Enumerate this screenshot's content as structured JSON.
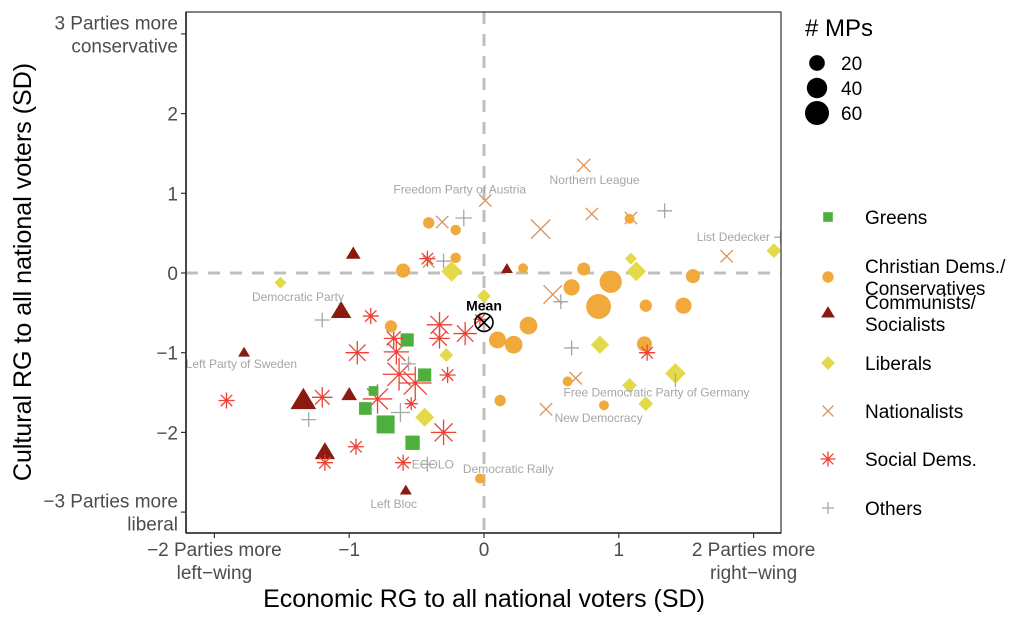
{
  "chart_data": {
    "type": "scatter",
    "title": "",
    "xlabel": "Economic RG to all national voters (SD)",
    "ylabel": "Cultural RG to all national voters (SD)",
    "xlim": [
      -2.2,
      2.2
    ],
    "ylim": [
      -3.3,
      3.3
    ],
    "grid": false,
    "reference_lines": {
      "x": 0,
      "y": 0,
      "style": "dashed",
      "color": "#bfbfbf"
    },
    "x_ticks": [
      {
        "value": -2,
        "label": [
          "−2 Parties more",
          "left−wing"
        ]
      },
      {
        "value": -1,
        "label": [
          "−1"
        ]
      },
      {
        "value": 0,
        "label": [
          "0"
        ]
      },
      {
        "value": 1,
        "label": [
          "1"
        ]
      },
      {
        "value": 2,
        "label": [
          "2 Parties more",
          "right−wing"
        ]
      }
    ],
    "y_ticks": [
      {
        "value": 3,
        "label": [
          "3 Parties more",
          "conservative"
        ]
      },
      {
        "value": 2,
        "label": [
          "2"
        ]
      },
      {
        "value": 1,
        "label": [
          "1"
        ]
      },
      {
        "value": 0,
        "label": [
          "0"
        ]
      },
      {
        "value": -1,
        "label": [
          "−1"
        ]
      },
      {
        "value": -2,
        "label": [
          "−2"
        ]
      },
      {
        "value": -3,
        "label": [
          "−3 Parties more",
          "liberal"
        ]
      }
    ],
    "size_legend": {
      "title": "# MPs",
      "entries": [
        20,
        40,
        60
      ],
      "placement": "top-right"
    },
    "families": [
      {
        "key": "greens",
        "label": [
          "Greens"
        ],
        "shape": "square",
        "color": "#4daf3c"
      },
      {
        "key": "christian",
        "label": [
          "Christian Dems./",
          "Conservatives"
        ],
        "shape": "circle",
        "color": "#f2a93b"
      },
      {
        "key": "communists",
        "label": [
          "Communists/",
          "Socialists"
        ],
        "shape": "triangle",
        "color": "#8b1a10"
      },
      {
        "key": "liberals",
        "label": [
          "Liberals"
        ],
        "shape": "diamond",
        "color": "#e3d94a"
      },
      {
        "key": "nationalists",
        "label": [
          "Nationalists"
        ],
        "shape": "x",
        "color": "#d9925a"
      },
      {
        "key": "socialdems",
        "label": [
          "Social Dems."
        ],
        "shape": "asterisk",
        "color": "#ee4035"
      },
      {
        "key": "others",
        "label": [
          "Others"
        ],
        "shape": "plus",
        "color": "#a6a6a6"
      }
    ],
    "legend_placement": "right",
    "mean": {
      "label": "Mean",
      "x": 0.0,
      "y": -0.62
    },
    "points": [
      {
        "family": "greens",
        "x": -0.73,
        "y": -1.9,
        "mps": 45
      },
      {
        "family": "greens",
        "x": -0.53,
        "y": -2.13,
        "mps": 25
      },
      {
        "family": "greens",
        "x": -0.57,
        "y": -0.84,
        "mps": 20
      },
      {
        "family": "greens",
        "x": -0.44,
        "y": -1.28,
        "mps": 20
      },
      {
        "family": "greens",
        "x": -0.88,
        "y": -1.7,
        "mps": 18
      },
      {
        "family": "greens",
        "x": -0.82,
        "y": -1.48,
        "mps": 8
      },
      {
        "family": "christian",
        "x": 0.85,
        "y": -0.42,
        "mps": 65
      },
      {
        "family": "christian",
        "x": 0.94,
        "y": -0.11,
        "mps": 50
      },
      {
        "family": "christian",
        "x": 0.33,
        "y": -0.66,
        "mps": 28
      },
      {
        "family": "christian",
        "x": 0.22,
        "y": -0.9,
        "mps": 28
      },
      {
        "family": "christian",
        "x": 0.1,
        "y": -0.84,
        "mps": 25
      },
      {
        "family": "christian",
        "x": 0.65,
        "y": -0.18,
        "mps": 22
      },
      {
        "family": "christian",
        "x": 1.48,
        "y": -0.41,
        "mps": 22
      },
      {
        "family": "christian",
        "x": 1.19,
        "y": -0.89,
        "mps": 18
      },
      {
        "family": "christian",
        "x": 1.55,
        "y": -0.04,
        "mps": 15
      },
      {
        "family": "christian",
        "x": -0.6,
        "y": 0.03,
        "mps": 15
      },
      {
        "family": "christian",
        "x": 0.74,
        "y": 0.05,
        "mps": 12
      },
      {
        "family": "christian",
        "x": 1.2,
        "y": -0.41,
        "mps": 10
      },
      {
        "family": "christian",
        "x": -0.69,
        "y": -0.67,
        "mps": 10
      },
      {
        "family": "christian",
        "x": 0.12,
        "y": -1.6,
        "mps": 8
      },
      {
        "family": "christian",
        "x": -0.41,
        "y": 0.63,
        "mps": 8
      },
      {
        "family": "christian",
        "x": -0.21,
        "y": 0.54,
        "mps": 6
      },
      {
        "family": "christian",
        "x": -0.21,
        "y": 0.19,
        "mps": 6
      },
      {
        "family": "christian",
        "x": 0.29,
        "y": 0.06,
        "mps": 5
      },
      {
        "family": "christian",
        "x": 0.62,
        "y": -1.36,
        "mps": 5
      },
      {
        "family": "christian",
        "x": 0.89,
        "y": -1.66,
        "mps": 5
      },
      {
        "family": "christian",
        "x": 1.08,
        "y": 0.68,
        "mps": 5
      },
      {
        "family": "christian",
        "x": -0.03,
        "y": -2.58,
        "mps": 5
      },
      {
        "family": "communists",
        "x": -1.34,
        "y": -1.6,
        "mps": 45
      },
      {
        "family": "communists",
        "x": -1.06,
        "y": -0.48,
        "mps": 25
      },
      {
        "family": "communists",
        "x": -1.18,
        "y": -2.25,
        "mps": 25
      },
      {
        "family": "communists",
        "x": -1.0,
        "y": -1.53,
        "mps": 12
      },
      {
        "family": "communists",
        "x": -0.97,
        "y": 0.24,
        "mps": 10
      },
      {
        "family": "communists",
        "x": -1.78,
        "y": -1.0,
        "mps": 5
      },
      {
        "family": "communists",
        "x": -0.58,
        "y": -2.73,
        "mps": 5
      },
      {
        "family": "communists",
        "x": 0.17,
        "y": 0.05,
        "mps": 5
      },
      {
        "family": "liberals",
        "x": 1.42,
        "y": -1.26,
        "mps": 25
      },
      {
        "family": "liberals",
        "x": -0.24,
        "y": 0.02,
        "mps": 25
      },
      {
        "family": "liberals",
        "x": 1.13,
        "y": 0.02,
        "mps": 22
      },
      {
        "family": "liberals",
        "x": -0.44,
        "y": -1.81,
        "mps": 20
      },
      {
        "family": "liberals",
        "x": 0.86,
        "y": -0.9,
        "mps": 18
      },
      {
        "family": "liberals",
        "x": 2.15,
        "y": 0.28,
        "mps": 10
      },
      {
        "family": "liberals",
        "x": 1.08,
        "y": -1.41,
        "mps": 10
      },
      {
        "family": "liberals",
        "x": 1.2,
        "y": -1.64,
        "mps": 10
      },
      {
        "family": "liberals",
        "x": 0.0,
        "y": -0.29,
        "mps": 8
      },
      {
        "family": "liberals",
        "x": -0.28,
        "y": -1.03,
        "mps": 8
      },
      {
        "family": "liberals",
        "x": 1.09,
        "y": 0.18,
        "mps": 5
      },
      {
        "family": "liberals",
        "x": -1.51,
        "y": -0.12,
        "mps": 5
      },
      {
        "family": "nationalists",
        "x": 0.42,
        "y": 0.55,
        "mps": 40
      },
      {
        "family": "nationalists",
        "x": 0.51,
        "y": -0.27,
        "mps": 35
      },
      {
        "family": "nationalists",
        "x": 0.74,
        "y": 1.35,
        "mps": 15
      },
      {
        "family": "nationalists",
        "x": 0.8,
        "y": 0.74,
        "mps": 12
      },
      {
        "family": "nationalists",
        "x": 1.09,
        "y": 0.69,
        "mps": 12
      },
      {
        "family": "nationalists",
        "x": 1.8,
        "y": 0.21,
        "mps": 12
      },
      {
        "family": "nationalists",
        "x": 0.46,
        "y": -1.71,
        "mps": 12
      },
      {
        "family": "nationalists",
        "x": 0.68,
        "y": -1.32,
        "mps": 12
      },
      {
        "family": "nationalists",
        "x": -0.31,
        "y": 0.64,
        "mps": 12
      },
      {
        "family": "nationalists",
        "x": 0.01,
        "y": 0.91,
        "mps": 12
      },
      {
        "family": "nationalists",
        "x": -0.41,
        "y": 0.14,
        "mps": 10
      },
      {
        "family": "socialdems",
        "x": -0.63,
        "y": -1.27,
        "mps": 65
      },
      {
        "family": "socialdems",
        "x": -0.51,
        "y": -1.38,
        "mps": 65
      },
      {
        "family": "socialdems",
        "x": -0.79,
        "y": -1.58,
        "mps": 50
      },
      {
        "family": "socialdems",
        "x": -0.65,
        "y": -0.99,
        "mps": 35
      },
      {
        "family": "socialdems",
        "x": -0.3,
        "y": -2.0,
        "mps": 35
      },
      {
        "family": "socialdems",
        "x": -0.33,
        "y": -0.65,
        "mps": 35
      },
      {
        "family": "socialdems",
        "x": -0.94,
        "y": -1.0,
        "mps": 28
      },
      {
        "family": "socialdems",
        "x": -0.14,
        "y": -0.76,
        "mps": 28
      },
      {
        "family": "socialdems",
        "x": -1.2,
        "y": -1.56,
        "mps": 20
      },
      {
        "family": "socialdems",
        "x": -0.33,
        "y": -0.82,
        "mps": 20
      },
      {
        "family": "socialdems",
        "x": -0.67,
        "y": -0.82,
        "mps": 18
      },
      {
        "family": "socialdems",
        "x": -0.54,
        "y": -1.64,
        "mps": 5
      },
      {
        "family": "socialdems",
        "x": -1.91,
        "y": -1.6,
        "mps": 10
      },
      {
        "family": "socialdems",
        "x": -0.95,
        "y": -2.18,
        "mps": 10
      },
      {
        "family": "socialdems",
        "x": -1.18,
        "y": -2.38,
        "mps": 10
      },
      {
        "family": "socialdems",
        "x": -0.6,
        "y": -2.38,
        "mps": 10
      },
      {
        "family": "socialdems",
        "x": -0.84,
        "y": -0.54,
        "mps": 10
      },
      {
        "family": "socialdems",
        "x": -0.27,
        "y": -1.28,
        "mps": 10
      },
      {
        "family": "socialdems",
        "x": 1.21,
        "y": -1.0,
        "mps": 10
      },
      {
        "family": "socialdems",
        "x": -0.42,
        "y": 0.18,
        "mps": 10
      },
      {
        "family": "socialdems",
        "x": -0.03,
        "y": -0.58,
        "mps": 5
      },
      {
        "family": "others",
        "x": -0.62,
        "y": -1.75,
        "mps": 30
      },
      {
        "family": "others",
        "x": -0.15,
        "y": 0.69,
        "mps": 20
      },
      {
        "family": "others",
        "x": -1.2,
        "y": -0.59,
        "mps": 15
      },
      {
        "family": "others",
        "x": -1.3,
        "y": -1.84,
        "mps": 15
      },
      {
        "family": "others",
        "x": -0.56,
        "y": -1.14,
        "mps": 15
      },
      {
        "family": "others",
        "x": -0.42,
        "y": -2.4,
        "mps": 15
      },
      {
        "family": "others",
        "x": -0.3,
        "y": 0.15,
        "mps": 15
      },
      {
        "family": "others",
        "x": 1.34,
        "y": 0.78,
        "mps": 15
      },
      {
        "family": "others",
        "x": 0.57,
        "y": -0.36,
        "mps": 15
      },
      {
        "family": "others",
        "x": 0.65,
        "y": -0.94,
        "mps": 15
      },
      {
        "family": "others",
        "x": 2.2,
        "y": 0.45,
        "mps": 10
      }
    ],
    "annotations": [
      {
        "text": "Northern League",
        "x": 0.82,
        "y": 1.17
      },
      {
        "text": "Freedom Party of Austria",
        "x": -0.18,
        "y": 1.05
      },
      {
        "text": "List Dedecker",
        "x": 1.85,
        "y": 0.45
      },
      {
        "text": "Democratic Party",
        "x": -1.38,
        "y": -0.3
      },
      {
        "text": "Left Party of Sweden",
        "x": -1.8,
        "y": -1.14
      },
      {
        "text": "Free Democratic Party of Germany",
        "x": 1.28,
        "y": -1.5
      },
      {
        "text": "New Democracy",
        "x": 0.85,
        "y": -1.82
      },
      {
        "text": "ECOLO",
        "x": -0.38,
        "y": -2.4
      },
      {
        "text": "Democratic Rally",
        "x": 0.18,
        "y": -2.46
      },
      {
        "text": "Left Bloc",
        "x": -0.67,
        "y": -2.9
      }
    ],
    "annotation_leaders": [
      {
        "from": [
          1.42,
          -1.26
        ],
        "to": [
          1.42,
          -1.43
        ]
      },
      {
        "from": [
          2.2,
          0.45
        ],
        "to": [
          2.18,
          0.45
        ]
      }
    ]
  }
}
